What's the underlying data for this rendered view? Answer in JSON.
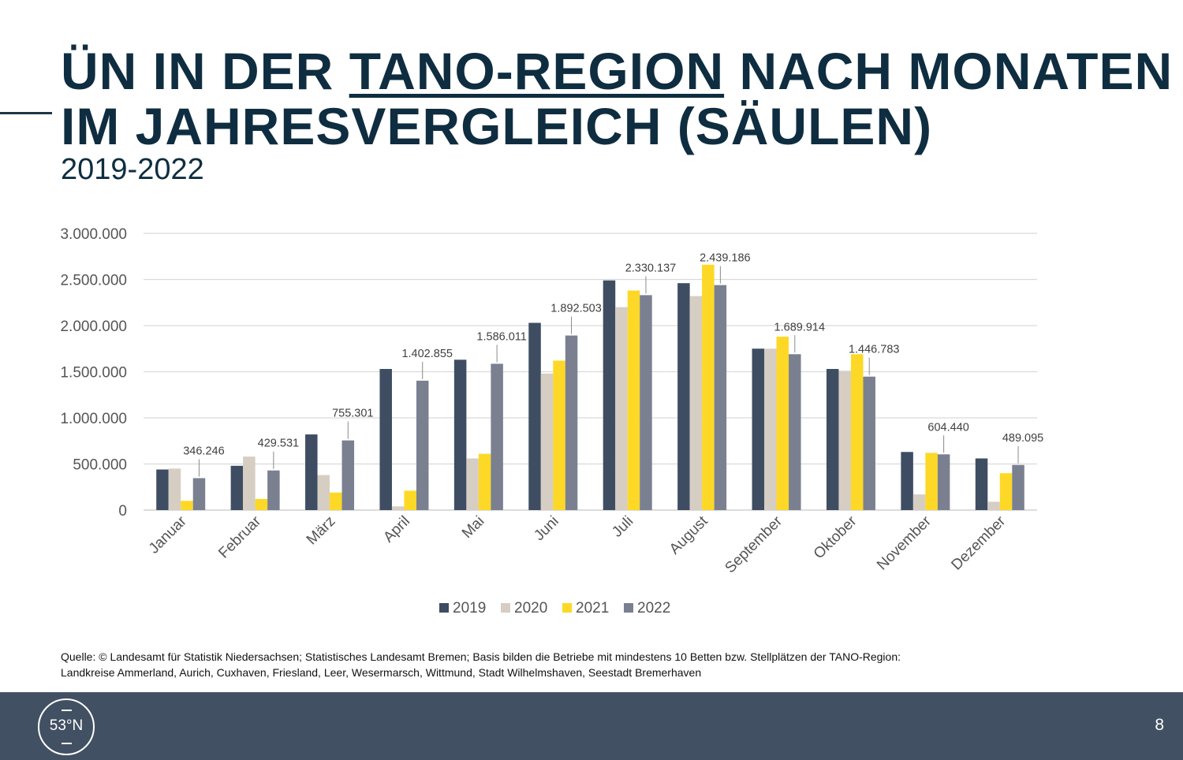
{
  "title": {
    "line1_pre": "ÜN IN DER ",
    "line1_underlined": "TANO-REGION",
    "line1_post": " NACH MONATEN",
    "line2": "IM JAHRESVERGLEICH (SÄULEN)"
  },
  "subtitle": "2019-2022",
  "source": {
    "line1": "Quelle: © Landesamt für Statistik Niedersachsen; Statistisches Landesamt Bremen; Basis bilden die Betriebe mit mindestens 10 Betten bzw. Stellplätzen der TANO-Region:",
    "line2": "Landkreise Ammerland, Aurich, Cuxhaven, Friesland, Leer, Wesermarsch, Wittmund, Stadt Wilhelmshaven, Seestadt Bremerhaven"
  },
  "logo": {
    "text": "53°N"
  },
  "page_number": "8",
  "chart_data": {
    "type": "bar",
    "categories": [
      "Januar",
      "Februar",
      "März",
      "April",
      "Mai",
      "Juni",
      "Juli",
      "August",
      "September",
      "Oktober",
      "November",
      "Dezember"
    ],
    "series": [
      {
        "name": "2019",
        "color": "#3f4d63",
        "values": [
          440000,
          480000,
          820000,
          1530000,
          1630000,
          2030000,
          2490000,
          2460000,
          1750000,
          1530000,
          630000,
          560000
        ]
      },
      {
        "name": "2020",
        "color": "#d6cec3",
        "values": [
          450000,
          580000,
          380000,
          40000,
          560000,
          1480000,
          2200000,
          2320000,
          1750000,
          1510000,
          170000,
          90000
        ]
      },
      {
        "name": "2021",
        "color": "#fdd826",
        "values": [
          100000,
          120000,
          190000,
          210000,
          610000,
          1620000,
          2380000,
          2660000,
          1880000,
          1690000,
          620000,
          400000
        ]
      },
      {
        "name": "2022",
        "color": "#7a8090",
        "values": [
          346246,
          429531,
          755301,
          1402855,
          1586011,
          1892503,
          2330137,
          2439186,
          1689914,
          1446783,
          604440,
          489095
        ]
      }
    ],
    "data_labels": {
      "series": "2022",
      "texts": [
        "346.246",
        "429.531",
        "755.301",
        "1.402.855",
        "1.586.011",
        "1.892.503",
        "2.330.137",
        "2.439.186",
        "1.689.914",
        "1.446.783",
        "604.440",
        "489.095"
      ]
    },
    "yticks": [
      0,
      500000,
      1000000,
      1500000,
      2000000,
      2500000,
      3000000
    ],
    "ytick_labels": [
      "0",
      "500.000",
      "1.000.000",
      "1.500.000",
      "2.000.000",
      "2.500.000",
      "3.000.000"
    ],
    "ylim": [
      0,
      3000000
    ],
    "grid": true,
    "legend_position": "bottom"
  }
}
